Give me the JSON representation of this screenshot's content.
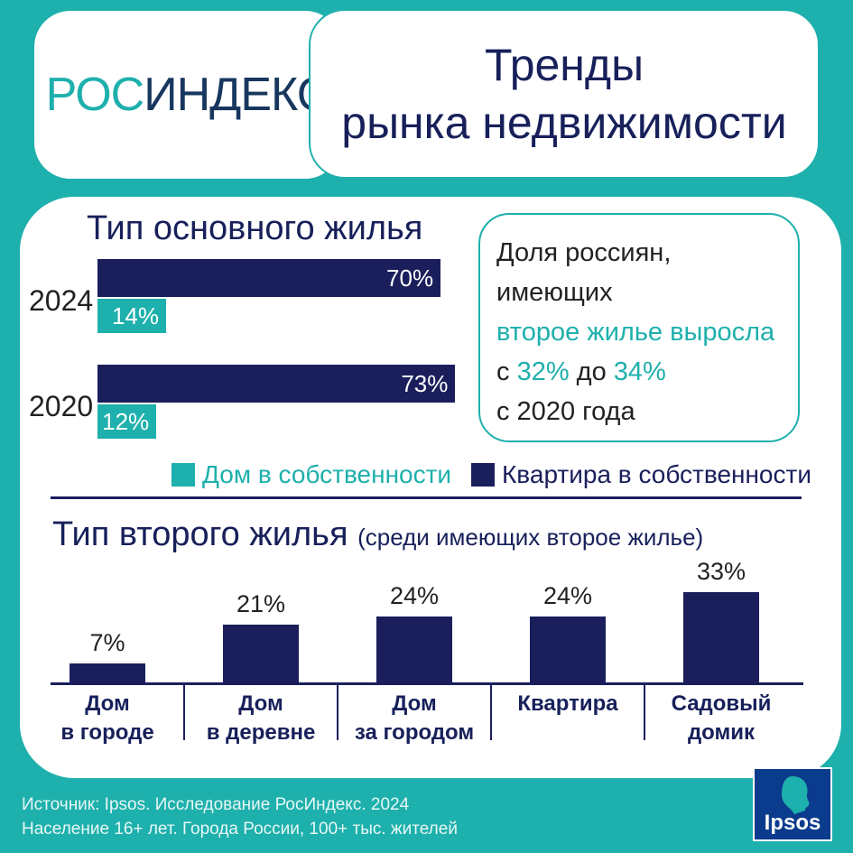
{
  "logo": {
    "part1": "РОС",
    "part2": "ИНДЕКС"
  },
  "header": {
    "title_line1": "Тренды",
    "title_line2": "рынка недвижимости"
  },
  "callout": {
    "line1": "Доля россиян,",
    "line2": "имеющих",
    "line3": "второе жилье выросла",
    "line4_prefix": "с ",
    "line4_from": "32%",
    "line4_mid": " до ",
    "line4_to": "34%",
    "line5": "с 2020 года"
  },
  "chart_data": [
    {
      "type": "bar",
      "title": "Тип основного жилья",
      "orientation": "horizontal",
      "categories": [
        "2024",
        "2020"
      ],
      "series": [
        {
          "name": "Квартира в собственности",
          "values": [
            70,
            73
          ],
          "labels": [
            "70%",
            "73%"
          ],
          "color": "#1a1f5c"
        },
        {
          "name": "Дом в собственности",
          "values": [
            14,
            12
          ],
          "labels": [
            "14%",
            "12%"
          ],
          "color": "#1eb0ac"
        }
      ],
      "legend": "bottom",
      "unit": "%"
    },
    {
      "type": "bar",
      "title": "Тип второго жилья",
      "subtitle": "(среди имеющих второе жилье)",
      "categories": [
        [
          "Дом",
          "в городе"
        ],
        [
          "Дом",
          "в деревне"
        ],
        [
          "Дом",
          "за городом"
        ],
        [
          "Квартира"
        ],
        [
          "Садовый",
          "домик"
        ]
      ],
      "values": [
        7,
        21,
        24,
        24,
        33
      ],
      "labels": [
        "7%",
        "21%",
        "24%",
        "24%",
        "33%"
      ],
      "color": "#1a1f5c",
      "unit": "%"
    }
  ],
  "source": {
    "line1": "Источник: Ipsos. Исследование РосИндекс. 2024",
    "line2": "Население 16+ лет. Города России, 100+ тыс. жителей"
  },
  "brand": {
    "name": "Ipsos",
    "teal": "#1eb0ac",
    "navy": "#1a1f5c"
  }
}
